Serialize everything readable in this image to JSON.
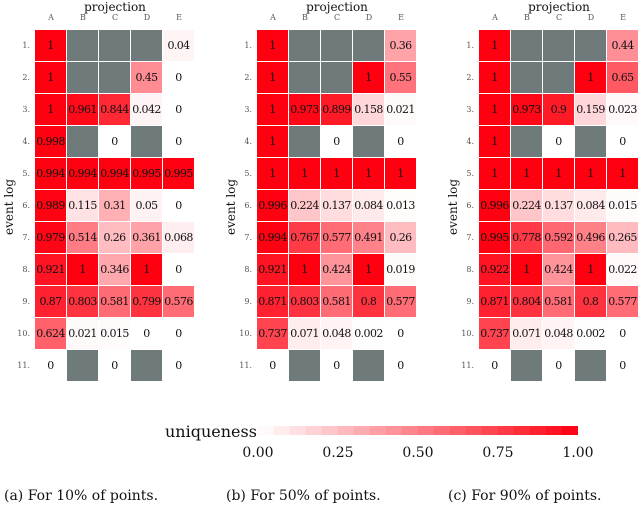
{
  "colors": {
    "low": "#ffffff",
    "high": "#ff0010",
    "null": "#6f7b7b"
  },
  "chart_data": [
    {
      "type": "heatmap",
      "title": "projection",
      "xlabel": "projection",
      "ylabel": "event log",
      "columns": [
        "A",
        "B",
        "C",
        "D",
        "E"
      ],
      "rows": [
        "1.",
        "2.",
        "3.",
        "4.",
        "5.",
        "6.",
        "7.",
        "8.",
        "9.",
        "10.",
        "11."
      ],
      "caption": "(a) For 10% of points.",
      "values": [
        [
          1,
          null,
          null,
          null,
          0.04
        ],
        [
          1,
          null,
          null,
          0.45,
          0
        ],
        [
          1,
          0.961,
          0.844,
          0.042,
          0
        ],
        [
          0.998,
          null,
          0,
          null,
          0
        ],
        [
          0.994,
          0.994,
          0.994,
          0.995,
          0.995
        ],
        [
          0.989,
          0.115,
          0.31,
          0.05,
          0
        ],
        [
          0.979,
          0.514,
          0.26,
          0.361,
          0.068
        ],
        [
          0.921,
          1,
          0.346,
          1,
          0
        ],
        [
          0.87,
          0.803,
          0.581,
          0.799,
          0.576
        ],
        [
          0.624,
          0.021,
          0.015,
          0,
          0
        ],
        [
          0,
          null,
          0,
          null,
          0
        ]
      ]
    },
    {
      "type": "heatmap",
      "title": "projection",
      "xlabel": "projection",
      "ylabel": "event log",
      "columns": [
        "A",
        "B",
        "C",
        "D",
        "E"
      ],
      "rows": [
        "1.",
        "2.",
        "3.",
        "4.",
        "5.",
        "6.",
        "7.",
        "8.",
        "9.",
        "10.",
        "11."
      ],
      "caption": "(b) For 50% of points.",
      "values": [
        [
          1,
          null,
          null,
          null,
          0.36
        ],
        [
          1,
          null,
          null,
          1,
          0.55
        ],
        [
          1,
          0.973,
          0.899,
          0.158,
          0.021
        ],
        [
          1,
          null,
          0,
          null,
          0
        ],
        [
          1,
          1,
          1,
          1,
          1
        ],
        [
          0.996,
          0.224,
          0.137,
          0.084,
          0.013
        ],
        [
          0.994,
          0.767,
          0.577,
          0.491,
          0.26
        ],
        [
          0.921,
          1,
          0.424,
          1,
          0.019
        ],
        [
          0.871,
          0.803,
          0.581,
          0.8,
          0.577
        ],
        [
          0.737,
          0.071,
          0.048,
          0.002,
          0
        ],
        [
          0,
          null,
          0,
          null,
          0
        ]
      ]
    },
    {
      "type": "heatmap",
      "title": "projection",
      "xlabel": "projection",
      "ylabel": "event log",
      "columns": [
        "A",
        "B",
        "C",
        "D",
        "E"
      ],
      "rows": [
        "1.",
        "2.",
        "3.",
        "4.",
        "5.",
        "6.",
        "7.",
        "8.",
        "9.",
        "10.",
        "11."
      ],
      "caption": "(c) For 90% of points.",
      "values": [
        [
          1,
          null,
          null,
          null,
          0.44
        ],
        [
          1,
          null,
          null,
          1,
          0.65
        ],
        [
          1,
          0.973,
          0.9,
          0.159,
          0.023
        ],
        [
          1,
          null,
          0,
          null,
          0
        ],
        [
          1,
          1,
          1,
          1,
          1
        ],
        [
          0.996,
          0.224,
          0.137,
          0.084,
          0.015
        ],
        [
          0.995,
          0.778,
          0.592,
          0.496,
          0.265
        ],
        [
          0.922,
          1,
          0.424,
          1,
          0.022
        ],
        [
          0.871,
          0.804,
          0.581,
          0.8,
          0.577
        ],
        [
          0.737,
          0.071,
          0.048,
          0.002,
          0
        ],
        [
          0,
          null,
          0,
          null,
          0
        ]
      ]
    }
  ],
  "colorbar": {
    "label": "uniqueness",
    "range": [
      0,
      1
    ],
    "ticks": [
      "0.00",
      "0.25",
      "0.50",
      "0.75",
      "1.00"
    ]
  }
}
